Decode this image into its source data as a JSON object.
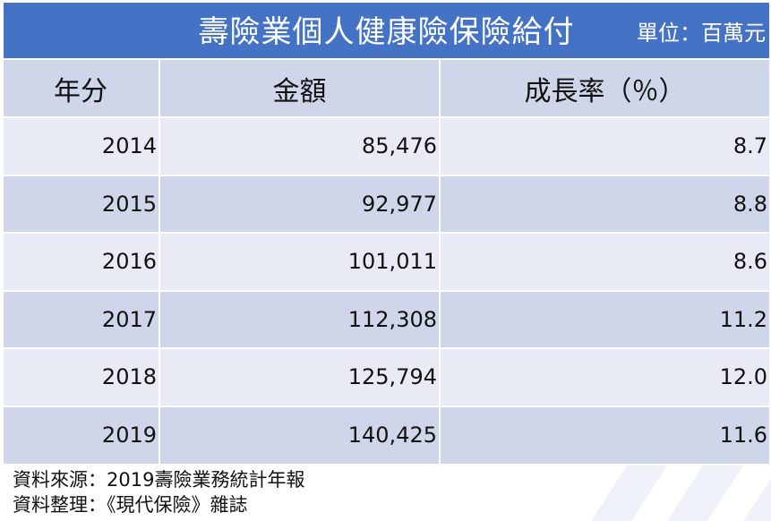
{
  "title": "壽險業個人健康險保險給付",
  "unit": "單位：百萬元",
  "headers": {
    "year": "年分",
    "amount": "金額",
    "rate": "成長率（％）"
  },
  "rows": [
    {
      "year": "2014",
      "amount": "85,476",
      "rate": "8.7"
    },
    {
      "year": "2015",
      "amount": "92,977",
      "rate": "8.8"
    },
    {
      "year": "2016",
      "amount": "101,011",
      "rate": "8.6"
    },
    {
      "year": "2017",
      "amount": "112,308",
      "rate": "11.2"
    },
    {
      "year": "2018",
      "amount": "125,794",
      "rate": "12.0"
    },
    {
      "year": "2019",
      "amount": "140,425",
      "rate": "11.6"
    }
  ],
  "source": {
    "line1": "資料來源：2019壽險業務統計年報",
    "line2": "資料整理：《現代保險》雜誌"
  },
  "colors": {
    "title_background": "#4472c4",
    "header_background": "#d0d6ea",
    "row_light": "#e8ebf5",
    "row_dark": "#d0d6ea"
  },
  "chart_data": {
    "type": "table",
    "title": "壽險業個人健康險保險給付",
    "unit": "單位：百萬元",
    "columns": [
      "年分",
      "金額",
      "成長率（％）"
    ],
    "categories": [
      "2014",
      "2015",
      "2016",
      "2017",
      "2018",
      "2019"
    ],
    "series": [
      {
        "name": "金額",
        "values": [
          85476,
          92977,
          101011,
          112308,
          125794,
          140425
        ]
      },
      {
        "name": "成長率（％）",
        "values": [
          8.7,
          8.8,
          8.6,
          11.2,
          12.0,
          11.6
        ]
      }
    ]
  }
}
